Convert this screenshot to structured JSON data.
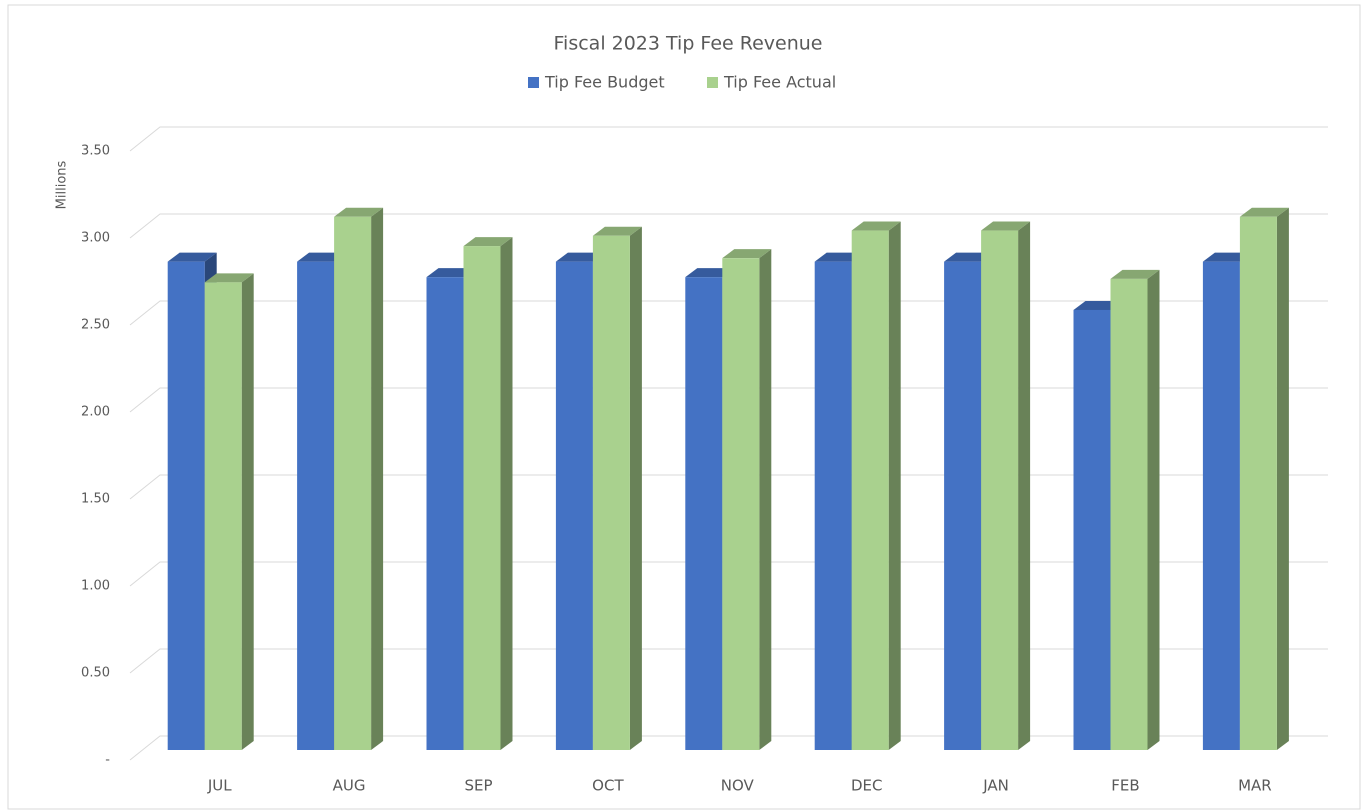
{
  "chart_data": {
    "type": "bar3d",
    "title": "Fiscal 2023 Tip Fee Revenue",
    "y_axis_label": "Millions",
    "categories": [
      "JUL",
      "AUG",
      "SEP",
      "OCT",
      "NOV",
      "DEC",
      "JAN",
      "FEB",
      "MAR"
    ],
    "series": [
      {
        "name": "Tip Fee Budget",
        "color": "#4472c4",
        "values": [
          2.83,
          2.83,
          2.74,
          2.83,
          2.74,
          2.83,
          2.83,
          2.55,
          2.83
        ]
      },
      {
        "name": "Tip Fee Actual",
        "color": "#a9d18e",
        "values": [
          2.71,
          3.09,
          2.92,
          2.98,
          2.85,
          3.01,
          3.01,
          2.73,
          3.09
        ]
      }
    ],
    "ylim": [
      0,
      3.5
    ],
    "yticks": [
      {
        "value": 0,
        "label": "-"
      },
      {
        "value": 0.5,
        "label": "0.50"
      },
      {
        "value": 1,
        "label": "1.00"
      },
      {
        "value": 1.5,
        "label": "1.50"
      },
      {
        "value": 2,
        "label": "2.00"
      },
      {
        "value": 2.5,
        "label": "2.50"
      },
      {
        "value": 3,
        "label": "3.00"
      },
      {
        "value": 3.5,
        "label": "3.50"
      }
    ],
    "grid": true,
    "legend": "top"
  }
}
